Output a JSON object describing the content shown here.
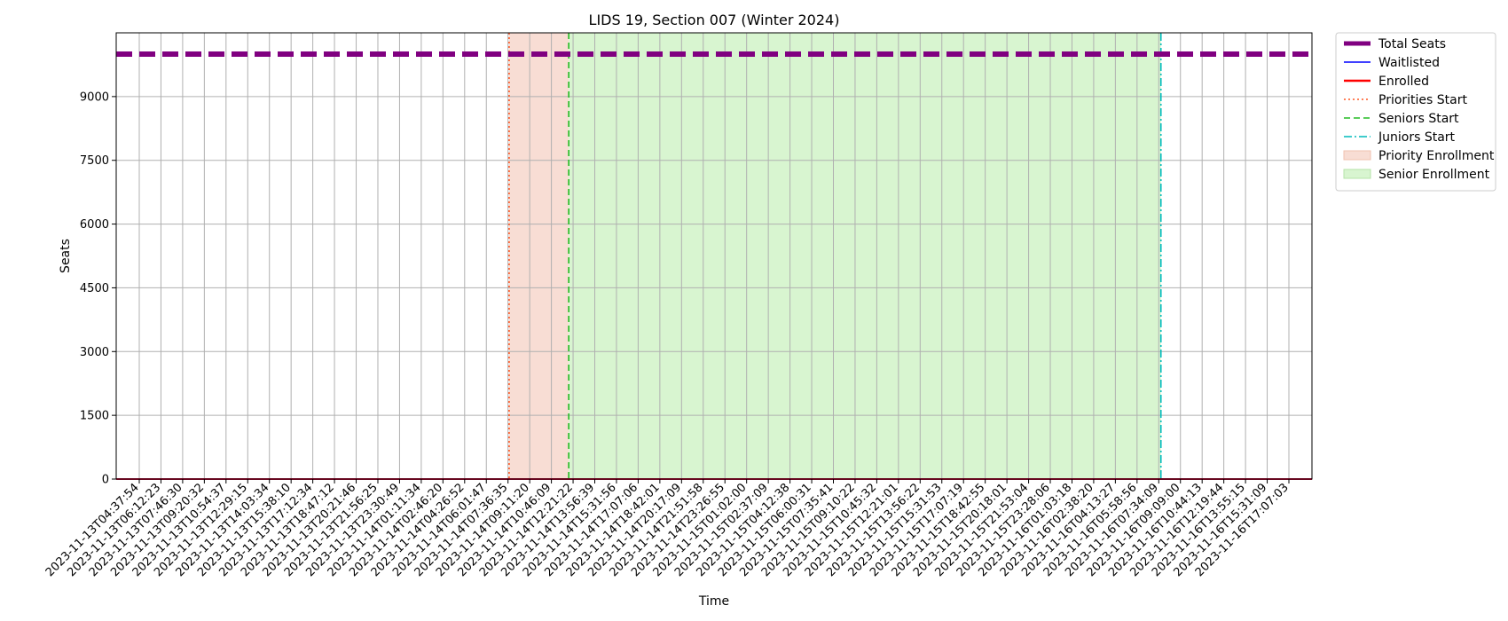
{
  "chart_data": {
    "type": "line",
    "title": "LIDS 19, Section 007 (Winter 2024)",
    "xlabel": "Time",
    "ylabel": "Seats",
    "y_ticks": [
      0,
      1500,
      3000,
      4500,
      6000,
      7500,
      9000
    ],
    "ylim": [
      0,
      10500
    ],
    "grid": true,
    "legend_position": "outside-top-right",
    "x": [
      "2023-11-13T04:37:54",
      "2023-11-13T06:12:23",
      "2023-11-13T07:46:30",
      "2023-11-13T09:20:32",
      "2023-11-13T10:54:37",
      "2023-11-13T12:29:15",
      "2023-11-13T14:03:34",
      "2023-11-13T15:38:10",
      "2023-11-13T17:12:34",
      "2023-11-13T18:47:12",
      "2023-11-13T20:21:46",
      "2023-11-13T21:56:25",
      "2023-11-13T23:30:49",
      "2023-11-14T01:11:34",
      "2023-11-14T02:46:20",
      "2023-11-14T04:26:52",
      "2023-11-14T06:01:47",
      "2023-11-14T07:36:35",
      "2023-11-14T09:11:20",
      "2023-11-14T10:46:09",
      "2023-11-14T12:21:22",
      "2023-11-14T13:56:39",
      "2023-11-14T15:31:56",
      "2023-11-14T17:07:06",
      "2023-11-14T18:42:01",
      "2023-11-14T20:17:09",
      "2023-11-14T21:51:58",
      "2023-11-14T23:26:55",
      "2023-11-15T01:02:00",
      "2023-11-15T02:37:09",
      "2023-11-15T04:12:38",
      "2023-11-15T06:00:31",
      "2023-11-15T07:35:41",
      "2023-11-15T09:10:22",
      "2023-11-15T10:45:32",
      "2023-11-15T12:21:01",
      "2023-11-15T13:56:22",
      "2023-11-15T15:31:53",
      "2023-11-15T17:07:19",
      "2023-11-15T18:42:55",
      "2023-11-15T20:18:01",
      "2023-11-15T21:53:04",
      "2023-11-15T23:28:06",
      "2023-11-16T01:03:18",
      "2023-11-16T02:38:20",
      "2023-11-16T04:13:27",
      "2023-11-16T05:58:56",
      "2023-11-16T07:34:09",
      "2023-11-16T09:09:00",
      "2023-11-16T10:44:13",
      "2023-11-16T12:19:44",
      "2023-11-16T13:55:15",
      "2023-11-16T15:31:09",
      "2023-11-16T17:07:03"
    ],
    "series": [
      {
        "name": "Total Seats",
        "style": "dashed",
        "color": "#800080",
        "constant_value": 10000
      },
      {
        "name": "Waitlisted",
        "style": "solid",
        "color": "#0000ff",
        "constant_value": 0
      },
      {
        "name": "Enrolled",
        "style": "solid",
        "color": "#ff0000",
        "constant_value": 0
      }
    ],
    "vlines": [
      {
        "name": "Priorities Start",
        "style": "dotted",
        "color": "#ff5722",
        "x": "2023-11-14T07:36:35",
        "index_offset": 0.05
      },
      {
        "name": "Seniors Start",
        "style": "dashed",
        "color": "#22bb22",
        "x": "2023-11-14T10:46:09",
        "index_offset": 0.8
      },
      {
        "name": "Juniors Start",
        "style": "dashdot",
        "color": "#00bbbb",
        "x": "2023-11-16T07:34:09",
        "index_offset": 0.1
      }
    ],
    "spans": [
      {
        "name": "Priority Enrollment",
        "color": "#f8ddd4",
        "border": "#f0c2b0",
        "from_index": 17.05,
        "to_index": 19.8
      },
      {
        "name": "Senior Enrollment",
        "color": "#d8f5d0",
        "border": "#b6e3a8",
        "from_index": 19.8,
        "to_index": 47.1
      }
    ]
  }
}
